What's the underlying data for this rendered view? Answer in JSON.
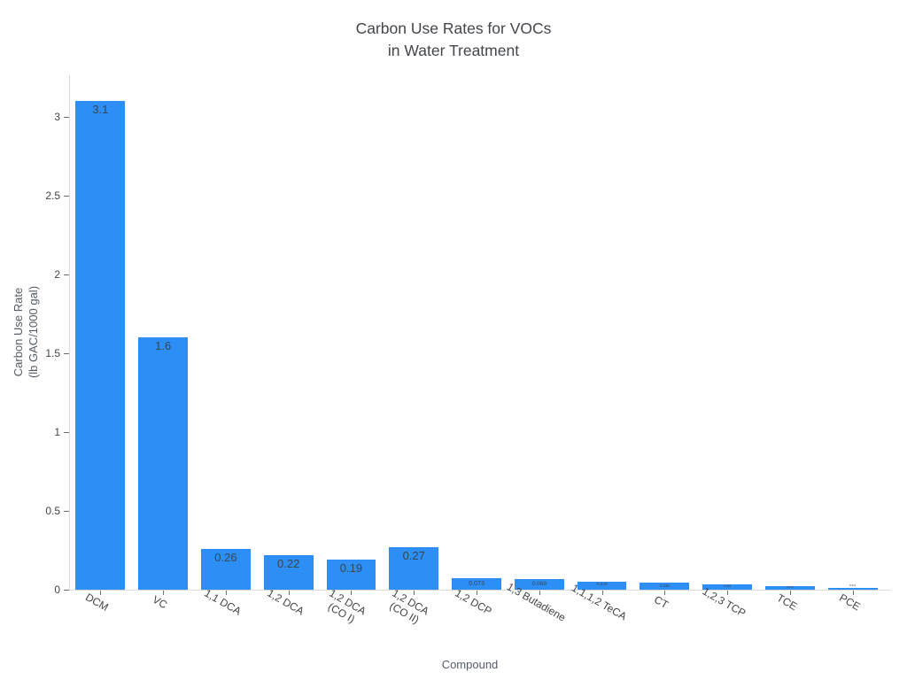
{
  "title": {
    "line1": "Carbon Use Rates for VOCs",
    "line2": "in Water Treatment"
  },
  "chart_data": {
    "type": "bar",
    "title": "Carbon Use Rates for VOCs\nin Water Treatment",
    "xlabel": "Compound",
    "ylabel": "Carbon Use Rate\n(lb GAC/1000 gal)",
    "ylabel_lines": [
      "Carbon Use Rate",
      "(lb GAC/1000 gal)"
    ],
    "categories": [
      "DCM",
      "VC",
      "1,1 DCA",
      "1,2 DCA",
      "1,2 DCA (CO I)",
      "1,2 DCA (CO II)",
      "1,2 DCP",
      "1,3 Butadiene",
      "1,1,1,2 TeCA",
      "CT",
      "1,2,3 TCP",
      "TCE",
      "PCE"
    ],
    "category_lines": [
      [
        "DCM"
      ],
      [
        "VC"
      ],
      [
        "1,1 DCA"
      ],
      [
        "1,2 DCA"
      ],
      [
        "1,2 DCA",
        "(CO I)"
      ],
      [
        "1,2 DCA",
        "(CO II)"
      ],
      [
        "1,2 DCP"
      ],
      [
        "1,3 Butadiene"
      ],
      [
        "1,1,1,2 TeCA"
      ],
      [
        "CT"
      ],
      [
        "1,2,3 TCP"
      ],
      [
        "TCE"
      ],
      [
        "PCE"
      ]
    ],
    "values": [
      3.1,
      1.6,
      0.26,
      0.22,
      0.19,
      0.27,
      0.073,
      0.068,
      0.049,
      0.045,
      0.034,
      0.023,
      0.011
    ],
    "bar_labels": [
      "3.1",
      "1.6",
      "0.26",
      "0.22",
      "0.19",
      "0.27",
      "0.073",
      "0.068",
      "0.049",
      "0.045",
      "0.034",
      "0.023",
      "0.011"
    ],
    "yticks": [
      0,
      0.5,
      1,
      1.5,
      2,
      2.5,
      3
    ],
    "ytick_labels": [
      "0",
      "0.5",
      "1",
      "1.5",
      "2",
      "2.5",
      "3"
    ],
    "ylim": [
      0,
      3.264
    ],
    "grid": false,
    "legend": "none",
    "background_color": "#ffffff",
    "bar_color": "#2d8ef6",
    "bar_label_color": "#37474f",
    "axis_line_color": "#d9d9d9",
    "tick_color": "#6e6e6e",
    "tick_label_color": "#444444"
  }
}
